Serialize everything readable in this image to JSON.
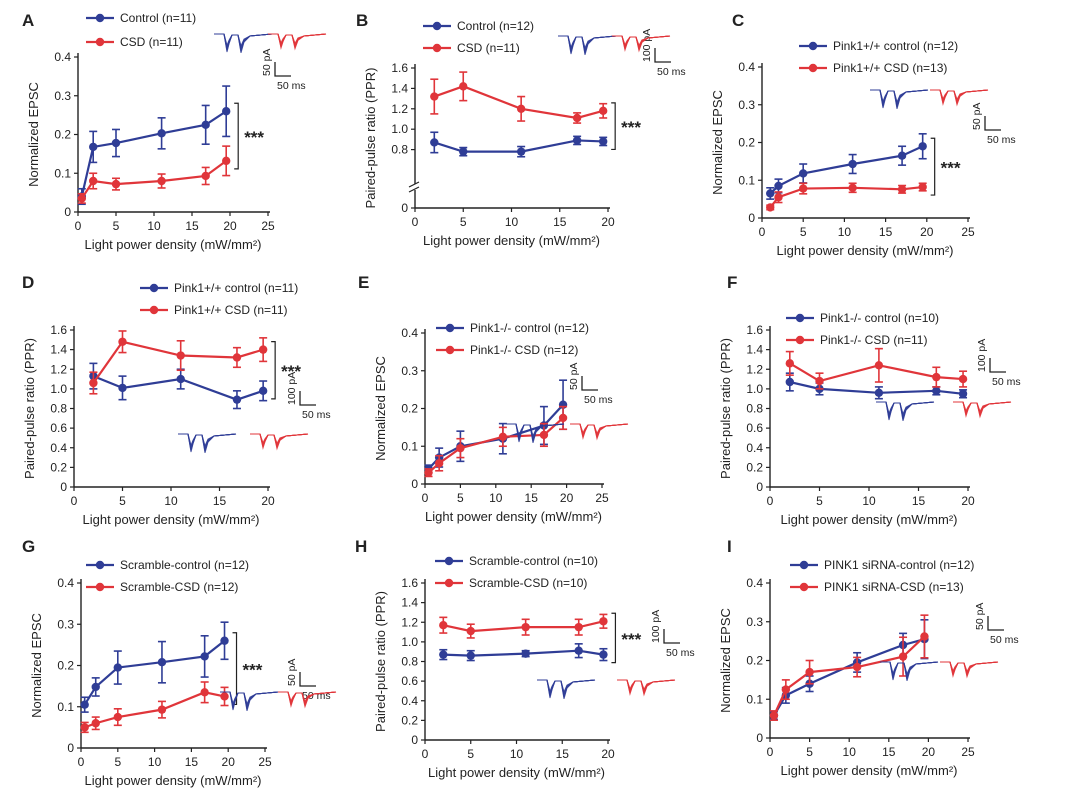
{
  "colors": {
    "control": "#2f3d96",
    "csd": "#e0353a",
    "axis": "#222222",
    "text": "#222222"
  },
  "units": {
    "x_axis_label": "Light power density (mW/mm²)"
  },
  "chart_data": [
    {
      "panel": "A",
      "type": "line",
      "ylabel": "Normalized EPSC",
      "xlim": [
        0,
        25
      ],
      "ylim": [
        0,
        0.4
      ],
      "xticks": [
        0,
        5,
        10,
        15,
        20,
        25
      ],
      "yticks": [
        0,
        0.1,
        0.2,
        0.3,
        0.4
      ],
      "series": [
        {
          "name": "Control (n=11)",
          "color": "#2f3d96",
          "x": [
            0.5,
            2,
            5,
            11,
            16.8,
            19.5
          ],
          "y": [
            0.04,
            0.168,
            0.178,
            0.203,
            0.225,
            0.26
          ],
          "err": [
            0.02,
            0.04,
            0.035,
            0.04,
            0.05,
            0.065
          ]
        },
        {
          "name": "CSD (n=11)",
          "color": "#e0353a",
          "x": [
            0.5,
            2,
            5,
            11,
            16.8,
            19.5
          ],
          "y": [
            0.035,
            0.08,
            0.072,
            0.08,
            0.093,
            0.132
          ],
          "err": [
            0.012,
            0.02,
            0.015,
            0.018,
            0.022,
            0.038
          ]
        }
      ],
      "significance": "***",
      "scale_bar": {
        "y": "50 pA",
        "x": "50 ms"
      }
    },
    {
      "panel": "B",
      "type": "line",
      "ylabel": "Paired-pulse ratio (PPR)",
      "xlim": [
        0,
        20
      ],
      "ylim": [
        0.6,
        1.6
      ],
      "axis_break": true,
      "xticks": [
        0,
        5,
        10,
        15,
        20
      ],
      "yticks": [
        0.8,
        1.0,
        1.2,
        1.4,
        1.6
      ],
      "extra_ytick": "0",
      "series": [
        {
          "name": "Control (n=12)",
          "color": "#2f3d96",
          "x": [
            2,
            5,
            11,
            16.8,
            19.5
          ],
          "y": [
            0.87,
            0.78,
            0.78,
            0.89,
            0.88
          ],
          "err": [
            0.1,
            0.04,
            0.05,
            0.04,
            0.04
          ]
        },
        {
          "name": "CSD (n=11)",
          "color": "#e0353a",
          "x": [
            2,
            5,
            11,
            16.8,
            19.5
          ],
          "y": [
            1.32,
            1.42,
            1.2,
            1.11,
            1.18
          ],
          "err": [
            0.17,
            0.14,
            0.12,
            0.05,
            0.07
          ]
        }
      ],
      "significance": "***",
      "scale_bar": {
        "y": "100 pA",
        "x": "50 ms"
      }
    },
    {
      "panel": "C",
      "type": "line",
      "ylabel": "Normalized EPSC",
      "xlim": [
        0,
        25
      ],
      "ylim": [
        0,
        0.4
      ],
      "xticks": [
        0,
        5,
        10,
        15,
        20,
        25
      ],
      "yticks": [
        0,
        0.1,
        0.2,
        0.3,
        0.4
      ],
      "series": [
        {
          "name": "Pink1+/+ control (n=12)",
          "color": "#2f3d96",
          "italic_prefix": "Pink1",
          "x": [
            1,
            2,
            5,
            11,
            17,
            19.5
          ],
          "y": [
            0.065,
            0.085,
            0.118,
            0.143,
            0.165,
            0.19
          ],
          "err": [
            0.015,
            0.018,
            0.025,
            0.025,
            0.025,
            0.033
          ]
        },
        {
          "name": "Pink1+/+ CSD (n=13)",
          "color": "#e0353a",
          "italic_prefix": "Pink1",
          "x": [
            1,
            2,
            5,
            11,
            17,
            19.5
          ],
          "y": [
            0.028,
            0.055,
            0.078,
            0.08,
            0.076,
            0.082
          ],
          "err": [
            0.006,
            0.014,
            0.014,
            0.012,
            0.01,
            0.01
          ]
        }
      ],
      "significance": "***",
      "scale_bar": {
        "y": "50 pA",
        "x": "50 ms"
      }
    },
    {
      "panel": "D",
      "type": "line",
      "ylabel": "Paired-pulse ratio (PPR)",
      "xlim": [
        0,
        20
      ],
      "ylim": [
        0,
        1.6
      ],
      "xticks": [
        0,
        5,
        10,
        15,
        20
      ],
      "yticks": [
        0,
        0.2,
        0.4,
        0.6,
        0.8,
        1.0,
        1.2,
        1.4,
        1.6
      ],
      "series": [
        {
          "name": "Pink1+/+ control (n=11)",
          "color": "#2f3d96",
          "italic_prefix": "Pink1",
          "x": [
            2,
            5,
            11,
            16.8,
            19.5
          ],
          "y": [
            1.13,
            1.01,
            1.1,
            0.89,
            0.98
          ],
          "err": [
            0.13,
            0.12,
            0.1,
            0.09,
            0.1
          ]
        },
        {
          "name": "Pink1+/+ CSD (n=11)",
          "color": "#e0353a",
          "italic_prefix": "Pink1",
          "x": [
            2,
            5,
            11,
            16.8,
            19.5
          ],
          "y": [
            1.06,
            1.48,
            1.34,
            1.32,
            1.4
          ],
          "err": [
            0.11,
            0.11,
            0.15,
            0.1,
            0.12
          ]
        }
      ],
      "significance": "***",
      "scale_bar": {
        "y": "100 pA",
        "x": "50 ms"
      }
    },
    {
      "panel": "E",
      "type": "line",
      "ylabel": "Normalized EPSC",
      "xlim": [
        0,
        25
      ],
      "ylim": [
        0,
        0.4
      ],
      "xticks": [
        0,
        5,
        10,
        15,
        20,
        25
      ],
      "yticks": [
        0,
        0.1,
        0.2,
        0.3,
        0.4
      ],
      "series": [
        {
          "name": "Pink1-/- control (n=12)",
          "color": "#2f3d96",
          "italic_prefix": "Pink1",
          "x": [
            0.5,
            2,
            5,
            11,
            16.8,
            19.5
          ],
          "y": [
            0.04,
            0.07,
            0.1,
            0.12,
            0.155,
            0.21
          ],
          "err": [
            0.01,
            0.025,
            0.04,
            0.04,
            0.05,
            0.065
          ]
        },
        {
          "name": "Pink1-/- CSD (n=12)",
          "color": "#e0353a",
          "italic_prefix": "Pink1",
          "x": [
            0.5,
            2,
            5,
            11,
            16.8,
            19.5
          ],
          "y": [
            0.03,
            0.055,
            0.095,
            0.125,
            0.13,
            0.175
          ],
          "err": [
            0.01,
            0.02,
            0.025,
            0.025,
            0.03,
            0.03
          ]
        }
      ],
      "scale_bar": {
        "y": "50 pA",
        "x": "50 ms"
      }
    },
    {
      "panel": "F",
      "type": "line",
      "ylabel": "Paired-pulse ratio (PPR)",
      "xlim": [
        0,
        20
      ],
      "ylim": [
        0,
        1.6
      ],
      "xticks": [
        0,
        5,
        10,
        15,
        20
      ],
      "yticks": [
        0,
        0.2,
        0.4,
        0.6,
        0.8,
        1.0,
        1.2,
        1.4,
        1.6
      ],
      "series": [
        {
          "name": "Pink1-/- control (n=10)",
          "color": "#2f3d96",
          "italic_prefix": "Pink1",
          "x": [
            2,
            5,
            11,
            16.8,
            19.5
          ],
          "y": [
            1.07,
            1.0,
            0.96,
            0.98,
            0.95
          ],
          "err": [
            0.09,
            0.06,
            0.06,
            0.04,
            0.04
          ]
        },
        {
          "name": "Pink1-/- CSD (n=11)",
          "color": "#e0353a",
          "italic_prefix": "Pink1",
          "x": [
            2,
            5,
            11,
            16.8,
            19.5
          ],
          "y": [
            1.26,
            1.08,
            1.24,
            1.12,
            1.1
          ],
          "err": [
            0.12,
            0.08,
            0.17,
            0.1,
            0.08
          ]
        }
      ],
      "scale_bar": {
        "y": "100 pA",
        "x": "50 ms"
      }
    },
    {
      "panel": "G",
      "type": "line",
      "ylabel": "Normalized EPSC",
      "xlim": [
        0,
        25
      ],
      "ylim": [
        0,
        0.4
      ],
      "xticks": [
        0,
        5,
        10,
        15,
        20,
        25
      ],
      "yticks": [
        0,
        0.1,
        0.2,
        0.3,
        0.4
      ],
      "series": [
        {
          "name": "Scramble-control (n=12)",
          "color": "#2f3d96",
          "x": [
            0.5,
            2,
            5,
            11,
            16.8,
            19.5
          ],
          "y": [
            0.105,
            0.148,
            0.195,
            0.208,
            0.222,
            0.26
          ],
          "err": [
            0.018,
            0.022,
            0.04,
            0.05,
            0.05,
            0.045
          ]
        },
        {
          "name": "Scramble-CSD (n=12)",
          "color": "#e0353a",
          "x": [
            0.5,
            2,
            5,
            11,
            16.8,
            19.5
          ],
          "y": [
            0.05,
            0.06,
            0.075,
            0.093,
            0.135,
            0.125
          ],
          "err": [
            0.012,
            0.015,
            0.02,
            0.02,
            0.025,
            0.022
          ]
        }
      ],
      "significance": "***",
      "scale_bar": {
        "y": "50 pA",
        "x": "50 ms"
      }
    },
    {
      "panel": "H",
      "type": "line",
      "ylabel": "Paired-pulse ratio (PPR)",
      "xlim": [
        0,
        20
      ],
      "ylim": [
        0,
        1.6
      ],
      "xticks": [
        0,
        5,
        10,
        15,
        20
      ],
      "yticks": [
        0,
        0.2,
        0.4,
        0.6,
        0.8,
        1.0,
        1.2,
        1.4,
        1.6
      ],
      "series": [
        {
          "name": "Scramble-control (n=10)",
          "color": "#2f3d96",
          "x": [
            2,
            5,
            11,
            16.8,
            19.5
          ],
          "y": [
            0.87,
            0.86,
            0.88,
            0.91,
            0.87
          ],
          "err": [
            0.05,
            0.05,
            0.03,
            0.07,
            0.06
          ]
        },
        {
          "name": "Scramble-CSD (n=10)",
          "color": "#e0353a",
          "x": [
            2,
            5,
            11,
            16.8,
            19.5
          ],
          "y": [
            1.17,
            1.11,
            1.15,
            1.15,
            1.21
          ],
          "err": [
            0.08,
            0.07,
            0.08,
            0.08,
            0.07
          ]
        }
      ],
      "significance": "***",
      "scale_bar": {
        "y": "100 pA",
        "x": "50 ms"
      }
    },
    {
      "panel": "I",
      "type": "line",
      "ylabel": "Normalized EPSC",
      "xlim": [
        0,
        25
      ],
      "ylim": [
        0,
        0.4
      ],
      "xticks": [
        0,
        5,
        10,
        15,
        20,
        25
      ],
      "yticks": [
        0,
        0.1,
        0.2,
        0.3,
        0.4
      ],
      "series": [
        {
          "name": "PINK1 siRNA-control (n=12)",
          "color": "#2f3d96",
          "x": [
            0.5,
            2,
            5,
            11,
            16.8,
            19.5
          ],
          "y": [
            0.058,
            0.11,
            0.14,
            0.195,
            0.24,
            0.255
          ],
          "err": [
            0.01,
            0.02,
            0.02,
            0.025,
            0.03,
            0.05
          ]
        },
        {
          "name": "PINK1 siRNA-CSD (n=13)",
          "color": "#e0353a",
          "x": [
            0.5,
            2,
            5,
            11,
            16.8,
            19.5
          ],
          "y": [
            0.058,
            0.125,
            0.17,
            0.183,
            0.21,
            0.262
          ],
          "err": [
            0.012,
            0.025,
            0.03,
            0.025,
            0.05,
            0.055
          ]
        }
      ],
      "scale_bar": {
        "y": "50 pA",
        "x": "50 ms"
      }
    }
  ]
}
